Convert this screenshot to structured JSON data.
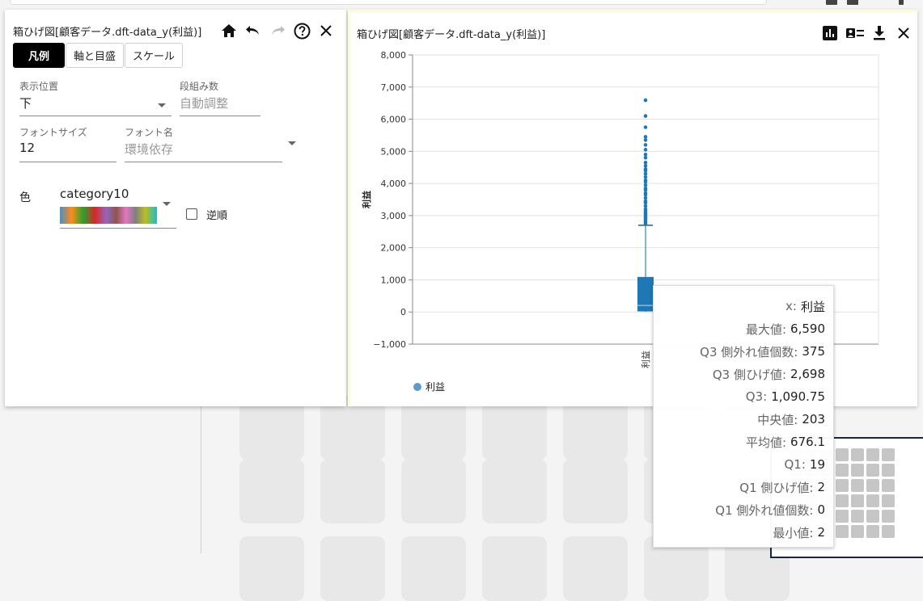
{
  "settings_panel": {
    "title": "箱ひげ図[顧客データ.dft-data_y(利益)]",
    "tabs": [
      "凡例",
      "軸と目盛",
      "スケール"
    ],
    "position_label": "表示位置",
    "position_value": "下",
    "columns_label": "段組み数",
    "columns_placeholder": "自動調整",
    "font_size_label": "フォントサイズ",
    "font_size_value": "12",
    "font_name_label": "フォント名",
    "font_name_placeholder": "環境依存",
    "color_label": "色",
    "color_scheme": "category10",
    "reverse_label": "逆順",
    "reverse_checked": false
  },
  "chart_panel": {
    "title": "箱ひげ図[顧客データ.dft-data_y(利益)]",
    "icons": [
      "bar-chart-icon",
      "legend-icon",
      "download-icon",
      "close-icon"
    ]
  },
  "chart_data": {
    "type": "box",
    "ylabel": "利益",
    "categories": [
      "利益"
    ],
    "ylim": [
      -1000,
      8000
    ],
    "yticks": [
      "8,000",
      "7,000",
      "6,000",
      "5,000",
      "4,000",
      "3,000",
      "2,000",
      "1,000",
      "0",
      "−1,000"
    ],
    "ytick_values": [
      8000,
      7000,
      6000,
      5000,
      4000,
      3000,
      2000,
      1000,
      0,
      -1000
    ],
    "grid": true,
    "legend": {
      "placement": "bottom-left",
      "entries": [
        "利益"
      ]
    },
    "color": "#1f77b4",
    "boxes": [
      {
        "name": "利益",
        "min": 2,
        "lower_whisker": 2,
        "q1": 19,
        "median": 203,
        "mean": 676.1,
        "q3": 1090.75,
        "upper_whisker": 2698,
        "max": 6590,
        "upper_outlier_count": 375,
        "lower_outlier_count": 0,
        "outliers": [
          2750,
          2800,
          2850,
          2900,
          2950,
          3000,
          3050,
          3100,
          3150,
          3200,
          3300,
          3400,
          3450,
          3550,
          3650,
          3700,
          3800,
          3850,
          3950,
          4050,
          4100,
          4200,
          4300,
          4400,
          4450,
          4550,
          4650,
          4800,
          4900,
          5050,
          5200,
          5350,
          5450,
          5750,
          6100,
          6590
        ]
      }
    ]
  },
  "tooltip": {
    "rows": [
      {
        "key": "x:",
        "value": "利益"
      },
      {
        "key": "最大値:",
        "value": "6,590"
      },
      {
        "key": "Q3 側外れ値個数:",
        "value": "375"
      },
      {
        "key": "Q3 側ひげ値:",
        "value": "2,698"
      },
      {
        "key": "Q3:",
        "value": "1,090.75"
      },
      {
        "key": "中央値:",
        "value": "203"
      },
      {
        "key": "平均値:",
        "value": "676.1"
      },
      {
        "key": "Q1:",
        "value": "19"
      },
      {
        "key": "Q1 側ひげ値:",
        "value": "2"
      },
      {
        "key": "Q1 側外れ値個数:",
        "value": "0"
      },
      {
        "key": "最小値:",
        "value": "2"
      }
    ]
  }
}
